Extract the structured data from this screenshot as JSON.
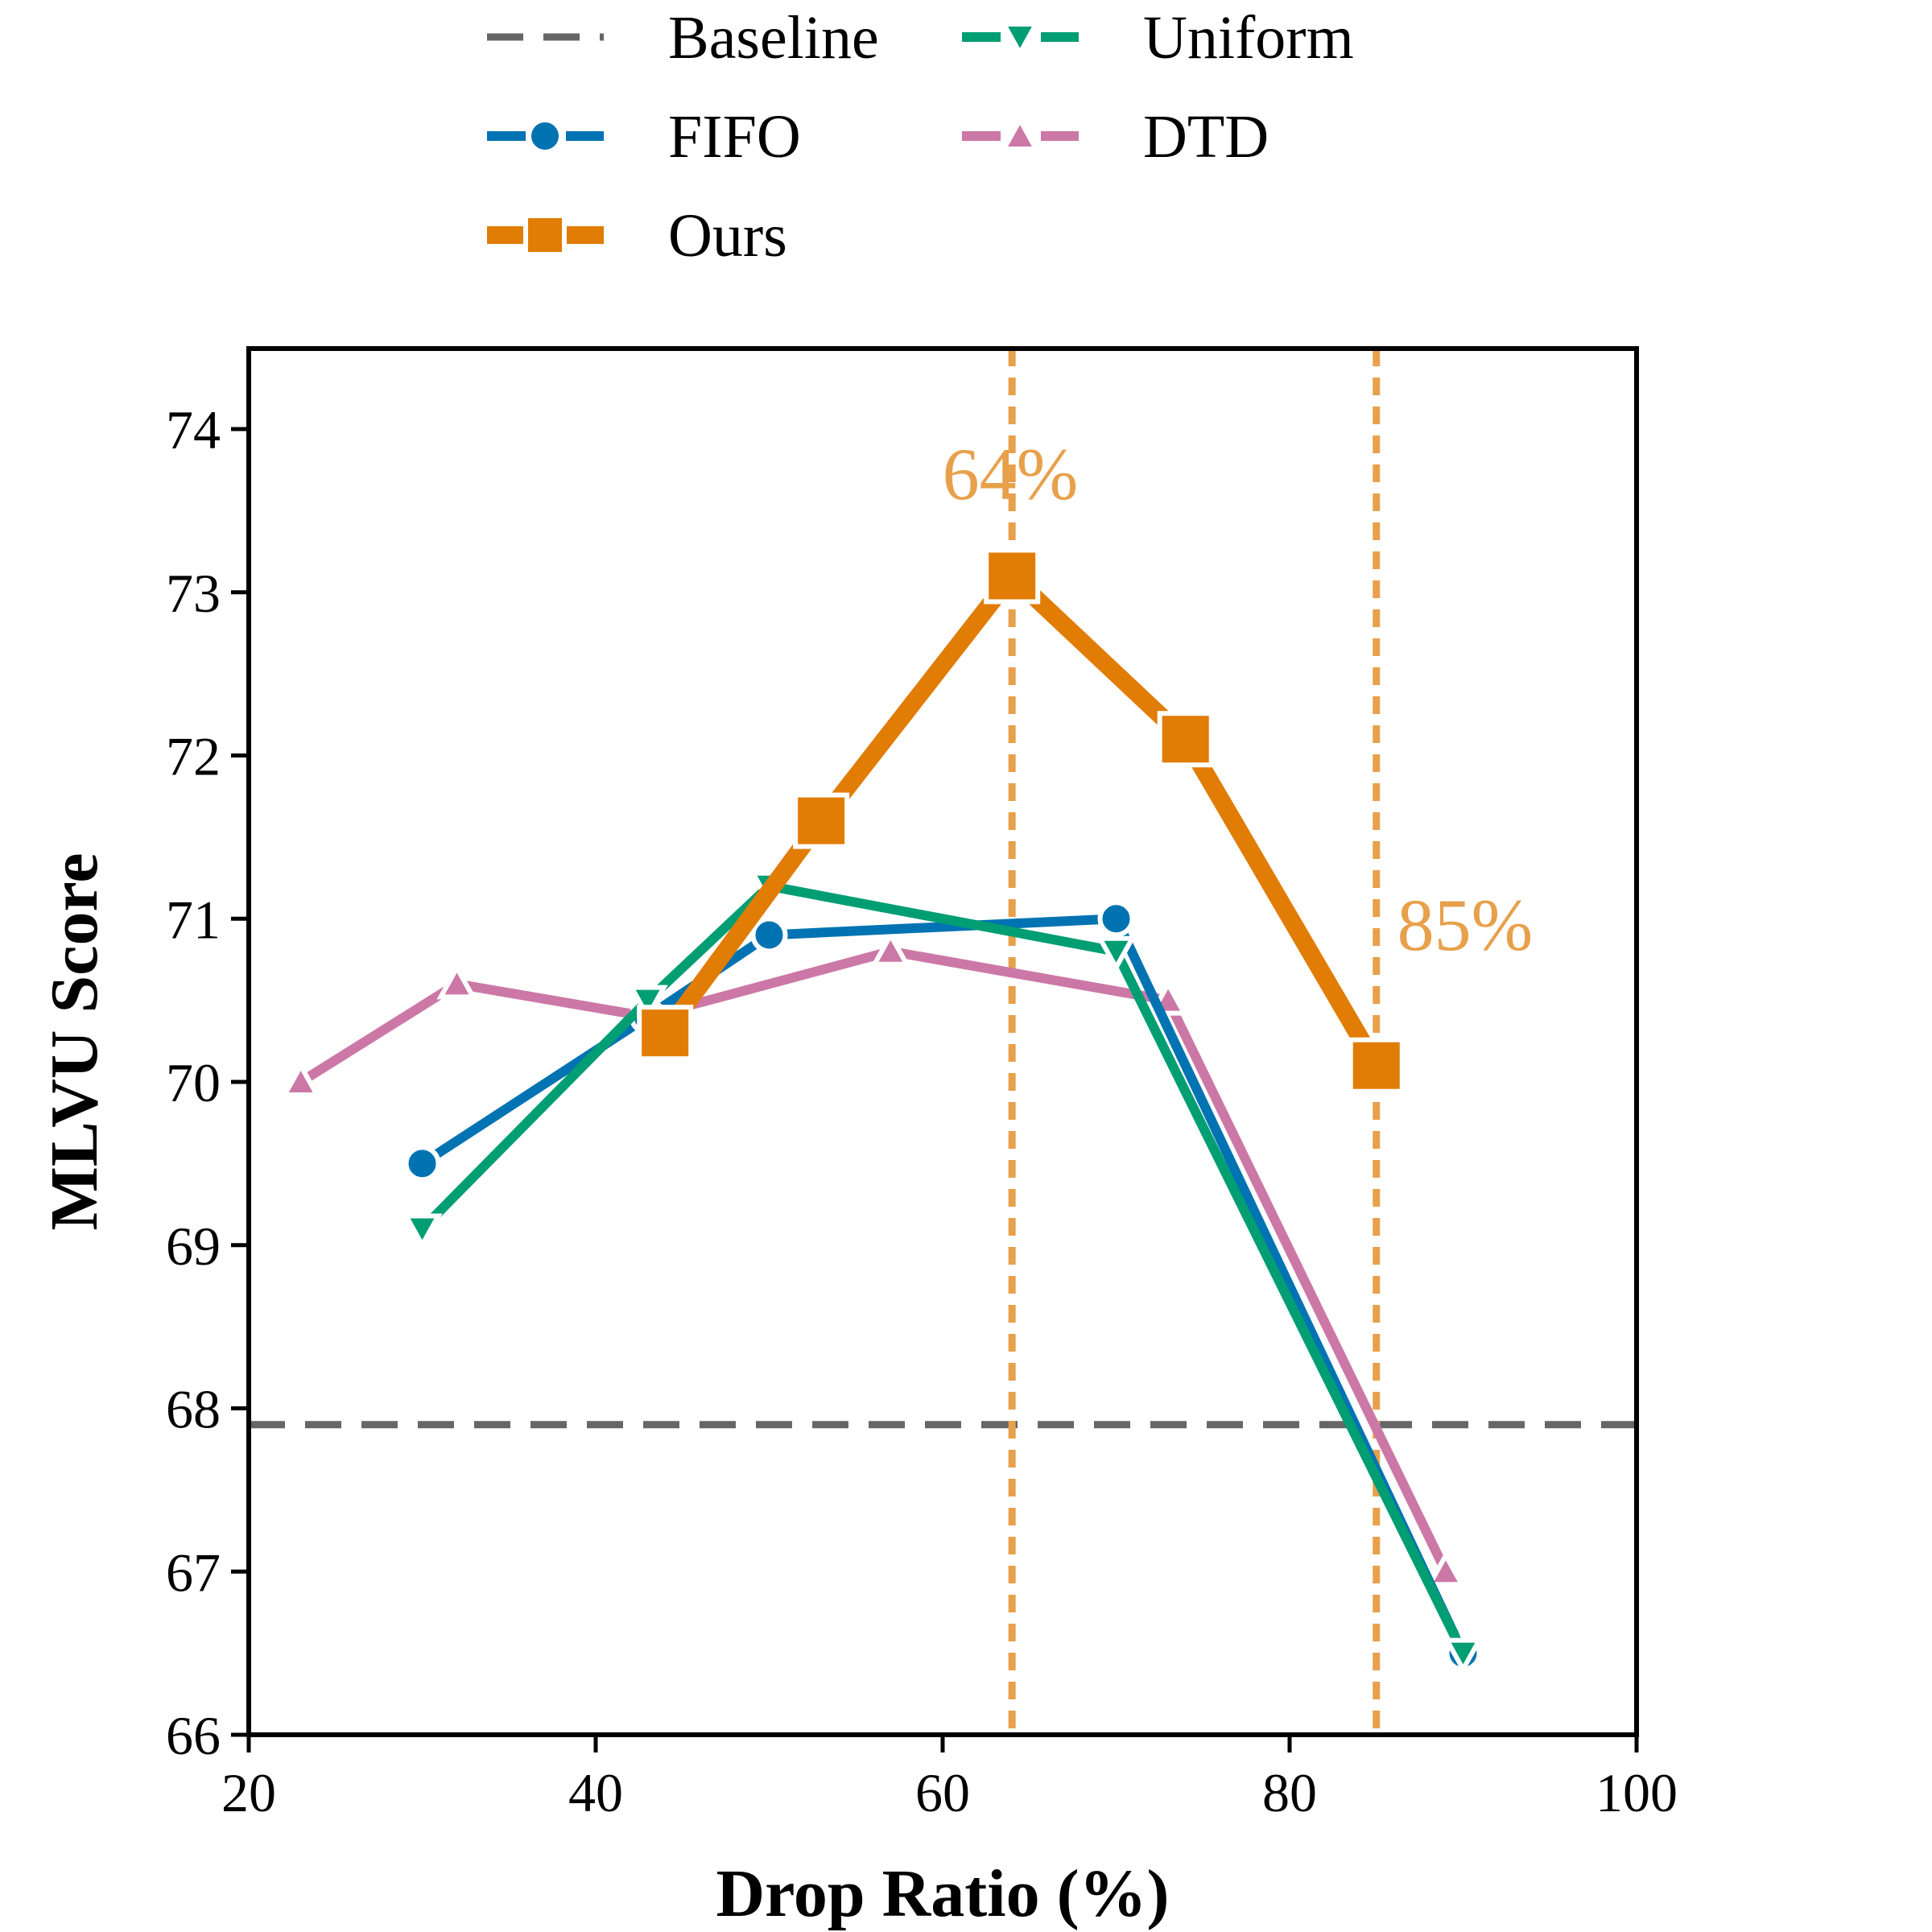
{
  "chart_data": {
    "type": "line",
    "xlabel": "Drop Ratio (%)",
    "ylabel": "MLVU Score",
    "xlim": [
      20,
      100
    ],
    "ylim": [
      66,
      74.5
    ],
    "xticks": [
      "20",
      "40",
      "60",
      "80",
      "100"
    ],
    "yticks": [
      "66",
      "67",
      "68",
      "69",
      "70",
      "71",
      "72",
      "73",
      "74"
    ],
    "grid": false,
    "legend_placement": "top (above plot)",
    "baseline": {
      "name": "Baseline",
      "y": 67.9,
      "color": "#666666"
    },
    "series": [
      {
        "name": "FIFO",
        "marker": "circle",
        "color": "#0173b2",
        "x": [
          30,
          43,
          50,
          70,
          90
        ],
        "y": [
          69.5,
          70.4,
          70.9,
          71.0,
          66.5
        ]
      },
      {
        "name": "Ours",
        "marker": "square",
        "color": "#e17c05",
        "x": [
          44,
          53,
          64,
          74,
          85
        ],
        "y": [
          70.3,
          71.6,
          73.1,
          72.1,
          70.1
        ]
      },
      {
        "name": "Uniform",
        "marker": "triangle-down",
        "color": "#029e73",
        "x": [
          30,
          43,
          50,
          70,
          90
        ],
        "y": [
          69.1,
          70.5,
          71.2,
          70.8,
          66.5
        ]
      },
      {
        "name": "DTD",
        "marker": "triangle-up",
        "color": "#cc78a6",
        "x": [
          23,
          32,
          43,
          57,
          73,
          89
        ],
        "y": [
          70.0,
          70.6,
          70.4,
          70.8,
          70.5,
          67.0
        ]
      }
    ],
    "vlines": [
      {
        "x": 64,
        "label": "64%",
        "color": "#e8a04a"
      },
      {
        "x": 85,
        "label": "85%",
        "color": "#e8a04a"
      }
    ]
  }
}
